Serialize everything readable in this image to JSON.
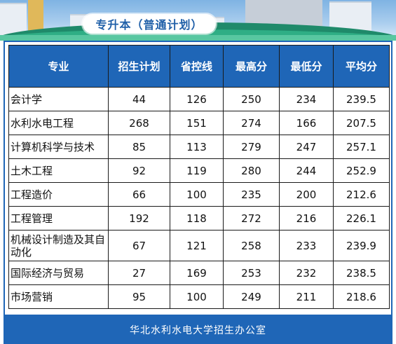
{
  "title": "专升本（普通计划）",
  "table": {
    "headers": [
      "专业",
      "招生计划",
      "省控线",
      "最高分",
      "最低分",
      "平均分"
    ],
    "rows": [
      [
        "会计学",
        "44",
        "126",
        "250",
        "234",
        "239.5"
      ],
      [
        "水利水电工程",
        "268",
        "151",
        "274",
        "166",
        "207.5"
      ],
      [
        "计算机科学与技术",
        "85",
        "113",
        "279",
        "247",
        "257.1"
      ],
      [
        "土木工程",
        "92",
        "119",
        "280",
        "244",
        "252.9"
      ],
      [
        "工程造价",
        "66",
        "100",
        "235",
        "200",
        "212.6"
      ],
      [
        "工程管理",
        "192",
        "118",
        "272",
        "216",
        "226.1"
      ],
      [
        "机械设计制造及其自动化",
        "67",
        "121",
        "258",
        "233",
        "239.9"
      ],
      [
        "国际经济与贸易",
        "27",
        "169",
        "253",
        "232",
        "238.5"
      ],
      [
        "市场营销",
        "95",
        "100",
        "249",
        "211",
        "218.6"
      ]
    ]
  },
  "footer": "华北水利水电大学招生办公室",
  "colors": {
    "header_bg": "#1f66b7",
    "footer_bg": "#1f66b7",
    "title_text": "#1f5fa8"
  }
}
